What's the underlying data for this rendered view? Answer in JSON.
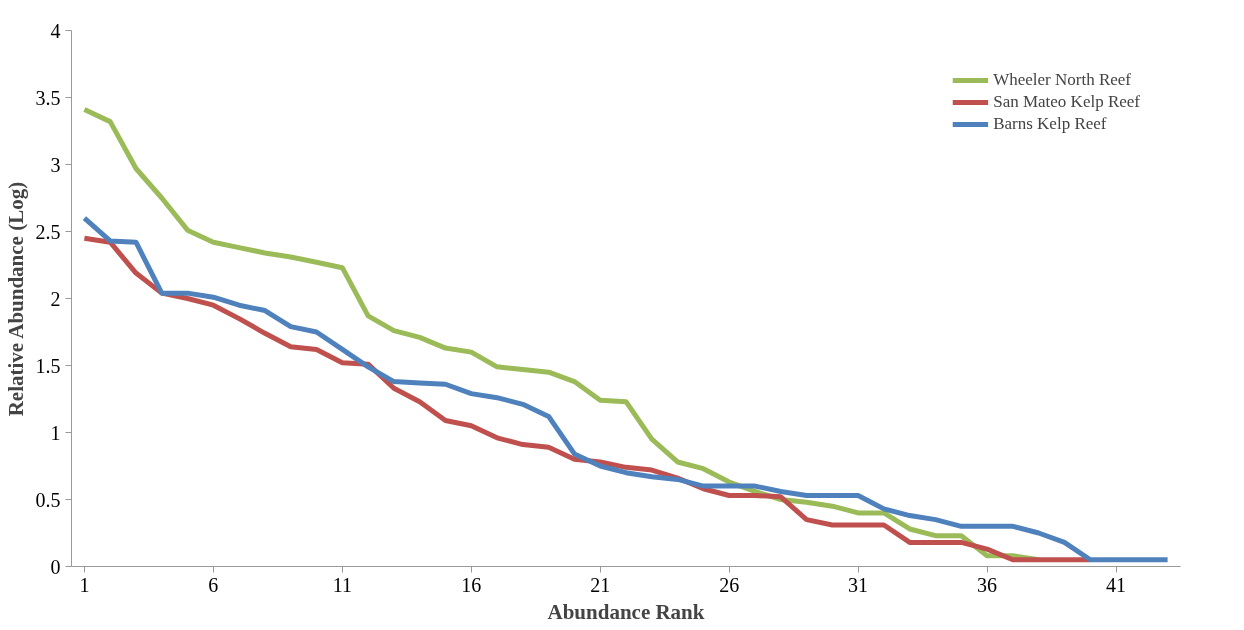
{
  "chart_data": {
    "type": "line",
    "xlabel": "Abundance Rank",
    "ylabel": "Relative Abundance (Log)",
    "x": [
      1,
      2,
      3,
      4,
      5,
      6,
      7,
      8,
      9,
      10,
      11,
      12,
      13,
      14,
      15,
      16,
      17,
      18,
      19,
      20,
      21,
      22,
      23,
      24,
      25,
      26,
      27,
      28,
      29,
      30,
      31,
      32,
      33,
      34,
      35,
      36,
      37,
      38,
      39,
      40,
      41,
      42,
      43
    ],
    "xlim": [
      0.5,
      43.5
    ],
    "xticks": [
      1,
      6,
      11,
      16,
      21,
      26,
      31,
      36,
      41
    ],
    "ylim": [
      0,
      4
    ],
    "yticks": [
      0,
      0.5,
      1,
      1.5,
      2,
      2.5,
      3,
      3.5,
      4
    ],
    "grid": false,
    "legend": "top right",
    "line_style": "solid",
    "marker": "none",
    "series": [
      {
        "name": "Wheeler North Reef",
        "color": "#9bbb59",
        "values": [
          3.41,
          3.32,
          2.97,
          2.75,
          2.51,
          2.42,
          2.38,
          2.34,
          2.31,
          2.27,
          2.23,
          1.87,
          1.76,
          1.71,
          1.63,
          1.6,
          1.49,
          1.47,
          1.45,
          1.38,
          1.24,
          1.23,
          0.95,
          0.78,
          0.73,
          0.63,
          0.56,
          0.5,
          0.48,
          0.45,
          0.4,
          0.4,
          0.28,
          0.23,
          0.23,
          0.08,
          0.08,
          0.05,
          null,
          null,
          null,
          null,
          null
        ]
      },
      {
        "name": "San Mateo Kelp Reef",
        "color": "#c0504d",
        "values": [
          2.45,
          2.42,
          2.19,
          2.04,
          2.0,
          1.95,
          1.85,
          1.74,
          1.64,
          1.62,
          1.52,
          1.51,
          1.33,
          1.23,
          1.09,
          1.05,
          0.96,
          0.91,
          0.89,
          0.8,
          0.78,
          0.74,
          0.72,
          0.66,
          0.58,
          0.53,
          0.53,
          0.52,
          0.35,
          0.31,
          0.31,
          0.31,
          0.18,
          0.18,
          0.18,
          0.13,
          0.05,
          0.05,
          0.05,
          0.05,
          null,
          null,
          null
        ]
      },
      {
        "name": "Barns Kelp Reef",
        "color": "#4f81bd",
        "values": [
          2.6,
          2.43,
          2.42,
          2.04,
          2.04,
          2.01,
          1.95,
          1.91,
          1.79,
          1.75,
          1.62,
          1.49,
          1.38,
          1.37,
          1.36,
          1.29,
          1.26,
          1.21,
          1.12,
          0.84,
          0.75,
          0.7,
          0.67,
          0.65,
          0.6,
          0.6,
          0.6,
          0.56,
          0.53,
          0.53,
          0.53,
          0.43,
          0.38,
          0.35,
          0.3,
          0.3,
          0.3,
          0.25,
          0.18,
          0.05,
          0.05,
          0.05,
          0.05
        ]
      }
    ]
  }
}
